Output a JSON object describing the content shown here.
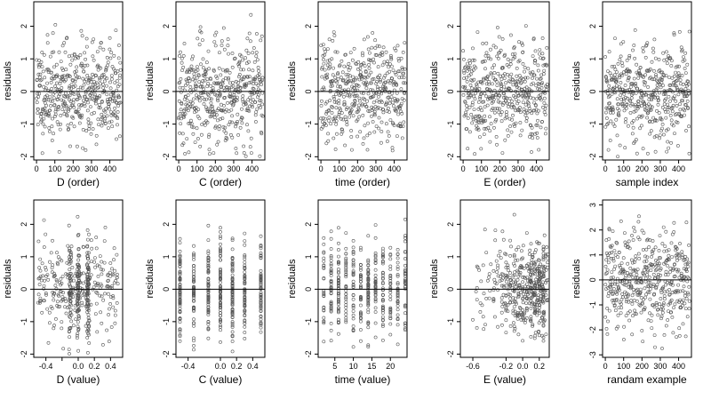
{
  "chart_data": [
    {
      "type": "scatter",
      "xlabel": "D (order)",
      "ylabel": "residuals",
      "xlim": [
        -15,
        470
      ],
      "ylim": [
        -2.1,
        2.75
      ],
      "xticks": [
        0,
        100,
        200,
        300,
        400
      ],
      "yticks": [
        -2,
        -1,
        0,
        1,
        2
      ],
      "n": 460,
      "xmode": "order",
      "seed": 11,
      "hline": 0
    },
    {
      "type": "scatter",
      "xlabel": "C (order)",
      "ylabel": "residuals",
      "xlim": [
        -15,
        470
      ],
      "ylim": [
        -2.1,
        2.75
      ],
      "xticks": [
        0,
        100,
        200,
        300,
        400
      ],
      "yticks": [
        -2,
        -1,
        0,
        1,
        2
      ],
      "n": 460,
      "xmode": "order",
      "seed": 23,
      "hline": 0
    },
    {
      "type": "scatter",
      "xlabel": "time (order)",
      "ylabel": "residuals",
      "xlim": [
        -15,
        470
      ],
      "ylim": [
        -2.1,
        2.75
      ],
      "xticks": [
        0,
        100,
        200,
        300,
        400
      ],
      "yticks": [
        -2,
        -1,
        0,
        1,
        2
      ],
      "n": 460,
      "xmode": "order",
      "seed": 37,
      "hline": 0
    },
    {
      "type": "scatter",
      "xlabel": "E (order)",
      "ylabel": "residuals",
      "xlim": [
        -15,
        470
      ],
      "ylim": [
        -2.1,
        2.75
      ],
      "xticks": [
        0,
        100,
        200,
        300,
        400
      ],
      "yticks": [
        -2,
        -1,
        0,
        1,
        2
      ],
      "n": 460,
      "xmode": "order",
      "seed": 41,
      "hline": 0
    },
    {
      "type": "scatter",
      "xlabel": "sample index",
      "ylabel": "residuals",
      "xlim": [
        -15,
        470
      ],
      "ylim": [
        -2.1,
        2.75
      ],
      "xticks": [
        0,
        100,
        200,
        300,
        400
      ],
      "yticks": [
        -2,
        -1,
        0,
        1,
        2
      ],
      "n": 460,
      "xmode": "order",
      "seed": 53,
      "hline": 0
    },
    {
      "type": "scatter",
      "xlabel": "D (value)",
      "ylabel": "residuals",
      "xlim": [
        -0.55,
        0.55
      ],
      "ylim": [
        -2.1,
        2.75
      ],
      "xticks": [
        -0.4,
        -0.2,
        0,
        0.2,
        0.4
      ],
      "xticklabels": [
        "-0.4",
        "",
        "0.0",
        "0.2",
        "0.4"
      ],
      "yticks": [
        -2,
        -1,
        0,
        1,
        2
      ],
      "n": 460,
      "xmode": "spread",
      "xspread": [
        -0.5,
        0.5
      ],
      "centers": [
        -0.1,
        0,
        0.12
      ],
      "seed": 61,
      "hline": 0
    },
    {
      "type": "scatter",
      "xlabel": "C (value)",
      "ylabel": "residuals",
      "xlim": [
        -0.55,
        0.55
      ],
      "ylim": [
        -2.1,
        2.75
      ],
      "xticks": [
        -0.4,
        0,
        0.2,
        0.4
      ],
      "xticklabels": [
        "-0.4",
        "0.0",
        "0.2",
        "0.4"
      ],
      "yticks": [
        -2,
        -1,
        0,
        1,
        2
      ],
      "n": 460,
      "xmode": "discrete",
      "xvalues": [
        -0.5,
        -0.33,
        -0.15,
        0,
        0.15,
        0.3,
        0.5
      ],
      "seed": 71,
      "hline": 0
    },
    {
      "type": "scatter",
      "xlabel": "time (value)",
      "ylabel": "residuals",
      "xlim": [
        0.5,
        24.5
      ],
      "ylim": [
        -2.1,
        2.75
      ],
      "xticks": [
        5,
        10,
        15,
        20
      ],
      "yticks": [
        -2,
        -1,
        0,
        1,
        2
      ],
      "n": 460,
      "xmode": "discrete",
      "xvalues": [
        2,
        4,
        6,
        8,
        10,
        12,
        14,
        16,
        18,
        20,
        22,
        24
      ],
      "seed": 83,
      "hline": 0
    },
    {
      "type": "scatter",
      "xlabel": "E (value)",
      "ylabel": "residuals",
      "xlim": [
        -0.75,
        0.32
      ],
      "ylim": [
        -2.1,
        2.75
      ],
      "xticks": [
        -0.6,
        -0.2,
        0,
        0.2
      ],
      "xticklabels": [
        "-0.6",
        "-0.2",
        "0.0",
        "0.2"
      ],
      "yticks": [
        -2,
        -1,
        0,
        1,
        2
      ],
      "n": 460,
      "xmode": "skew",
      "xspread": [
        -0.7,
        0.29
      ],
      "seed": 97,
      "hline": 0
    },
    {
      "type": "scatter",
      "xlabel": "randam example",
      "ylabel": "residuals",
      "xlim": [
        -15,
        470
      ],
      "ylim": [
        -3.1,
        3.2
      ],
      "xticks": [
        0,
        100,
        200,
        300,
        400
      ],
      "yticks": [
        -3,
        -2,
        -1,
        0,
        1,
        2,
        3
      ],
      "n": 460,
      "xmode": "order",
      "seed": 101,
      "hline": 0,
      "ysd": 1.0
    }
  ]
}
